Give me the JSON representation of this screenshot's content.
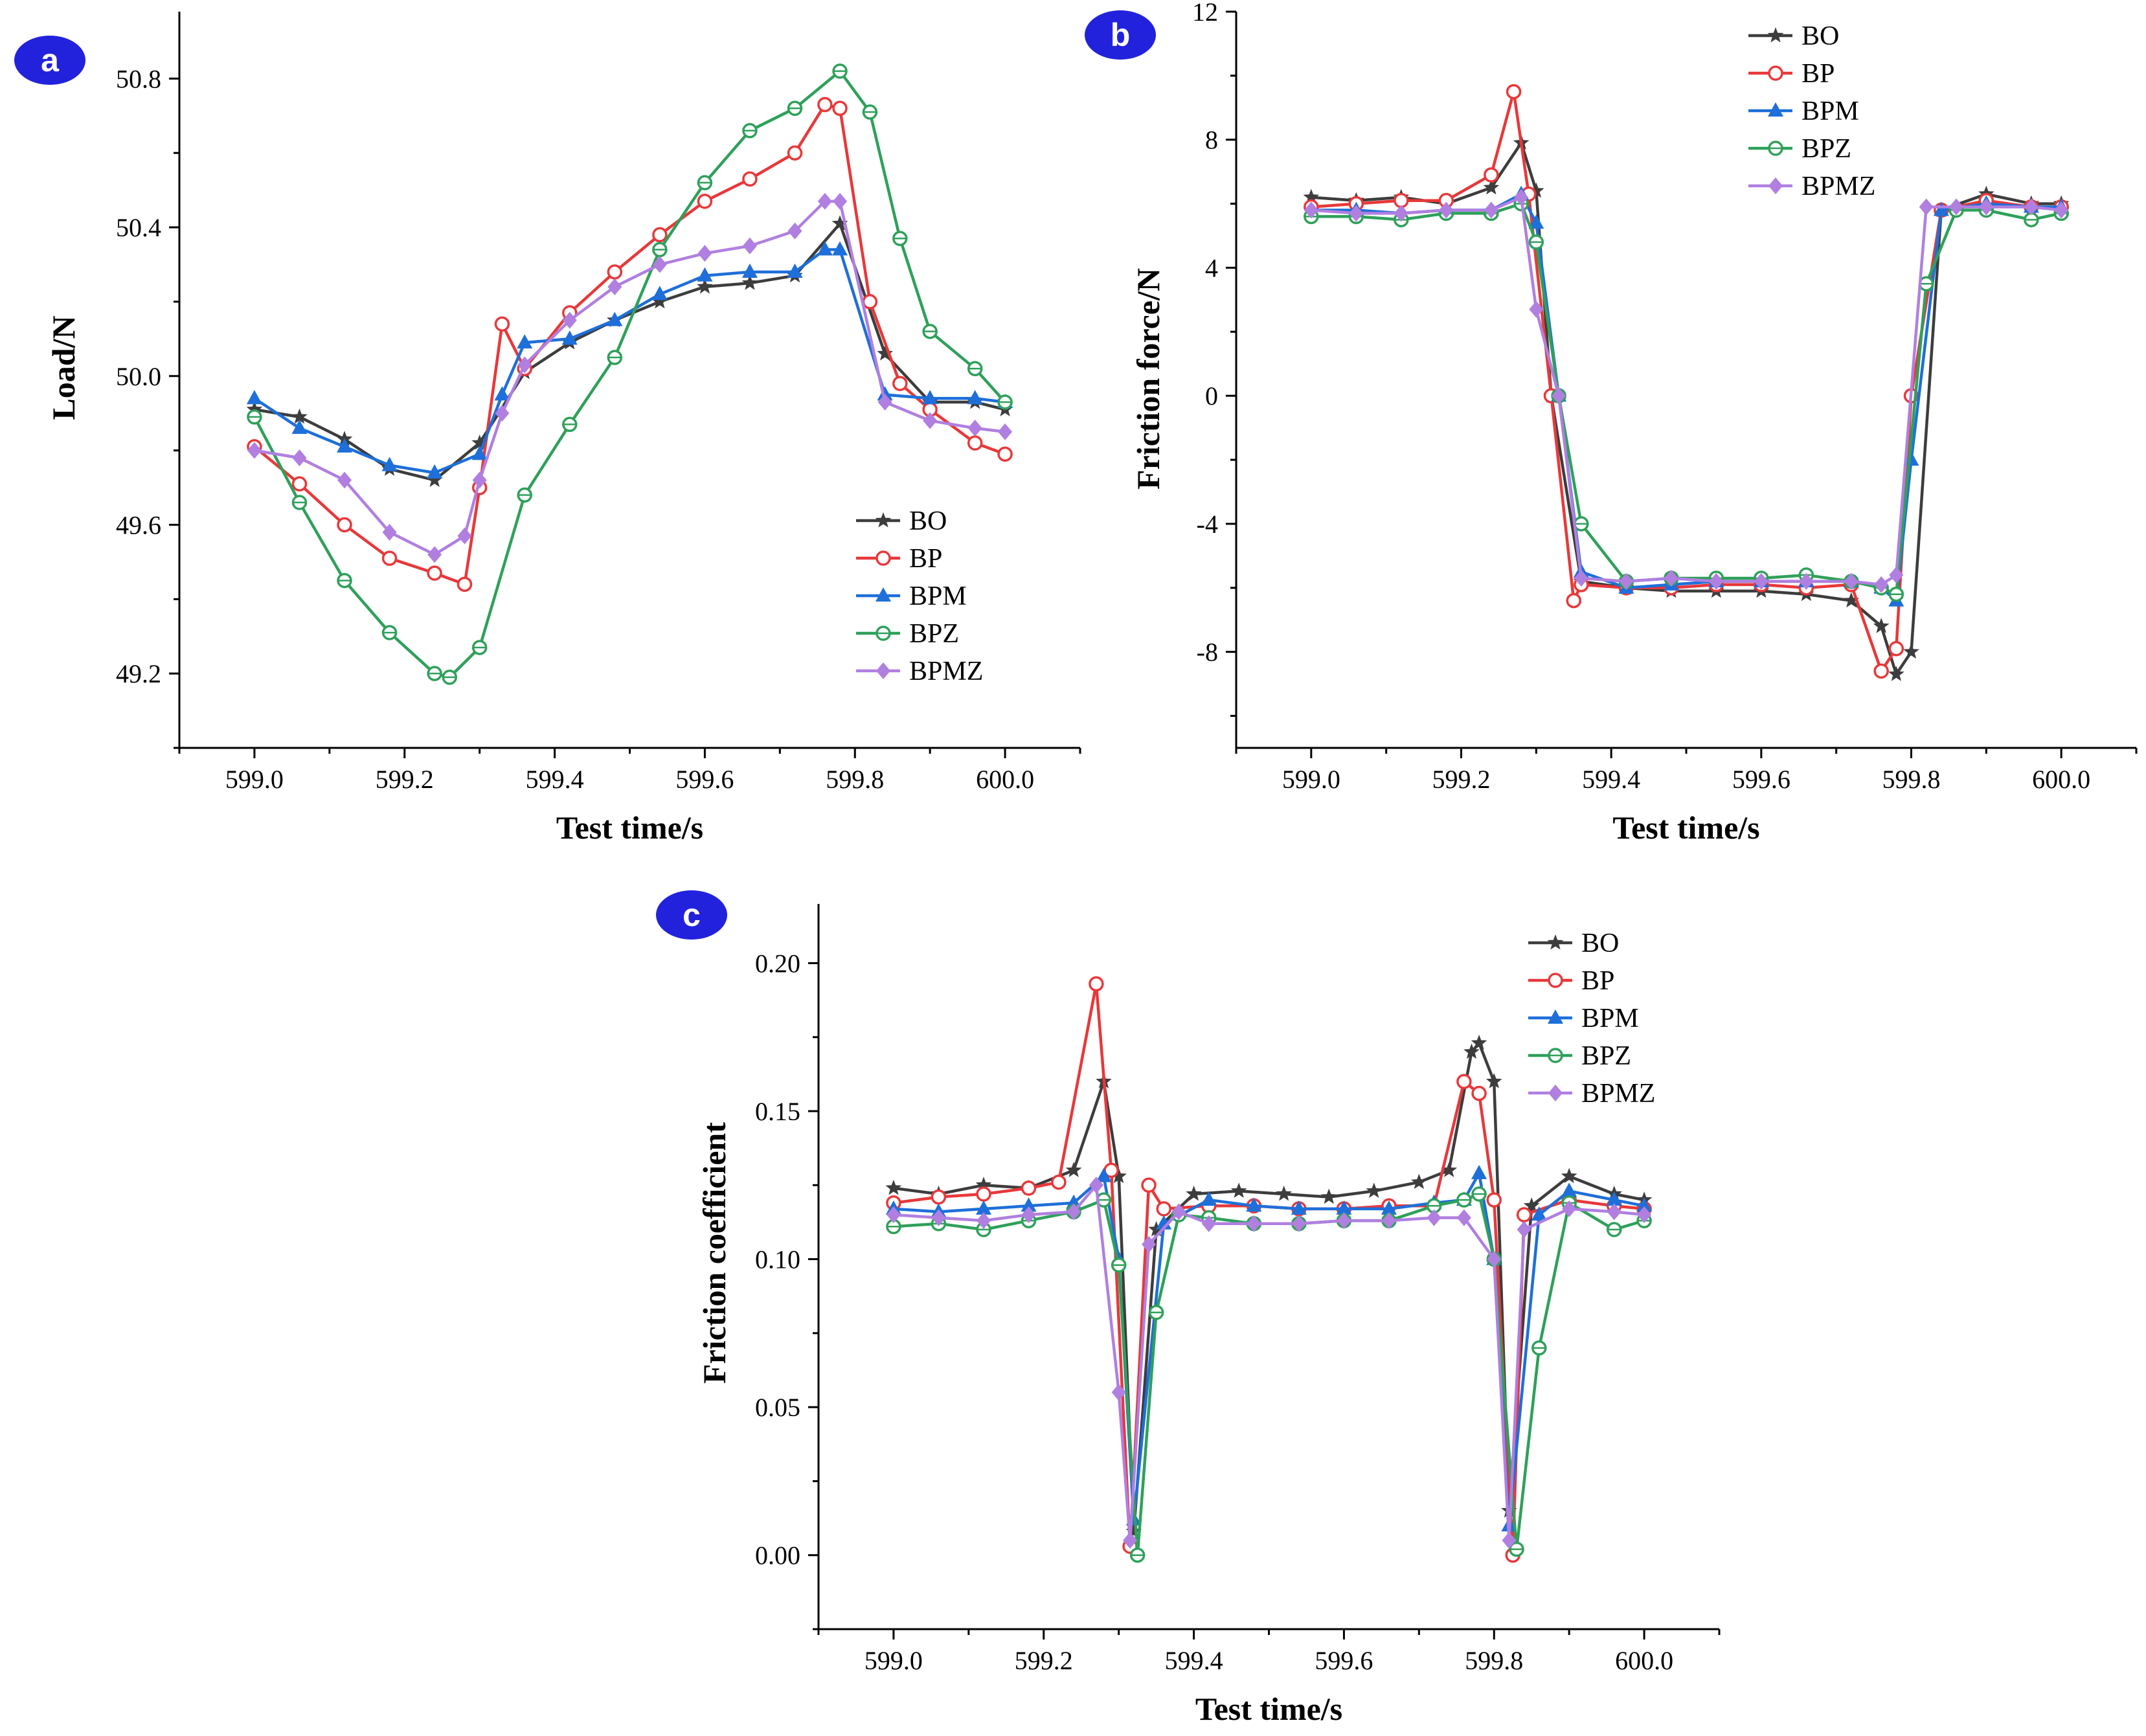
{
  "colors": {
    "BO": "#3d3d3d",
    "BP": "#e8383a",
    "BPM": "#1e6fd9",
    "BPZ": "#2fa05a",
    "BPMZ": "#b07fe0",
    "badge": "#2222dd"
  },
  "chart_data": [
    {
      "panel": "a",
      "type": "line",
      "xlabel": "Test time/s",
      "ylabel": "Load/N",
      "xlim": [
        598.9,
        600.1
      ],
      "ylim": [
        49.0,
        50.98
      ],
      "xticks": [
        599.0,
        599.2,
        599.4,
        599.6,
        599.8,
        600.0
      ],
      "xtick_labels": [
        "599.0",
        "599.2",
        "599.4",
        "599.6",
        "599.8",
        "600.0"
      ],
      "yticks": [
        49.2,
        49.6,
        50.0,
        50.4,
        50.8
      ],
      "ytick_labels": [
        "49.2",
        "49.6",
        "50.0",
        "50.4",
        "50.8"
      ],
      "legend_position": "bottom-right",
      "series": [
        {
          "name": "BO",
          "marker": "star",
          "x": [
            599.0,
            599.06,
            599.12,
            599.18,
            599.24,
            599.3,
            599.36,
            599.42,
            599.48,
            599.54,
            599.6,
            599.66,
            599.72,
            599.78,
            599.84,
            599.9,
            599.96,
            600.0
          ],
          "y": [
            49.91,
            49.89,
            49.83,
            49.75,
            49.72,
            49.82,
            50.01,
            50.09,
            50.15,
            50.2,
            50.24,
            50.25,
            50.27,
            50.41,
            50.06,
            49.93,
            49.93,
            49.91
          ]
        },
        {
          "name": "BP",
          "marker": "circle",
          "x": [
            599.0,
            599.06,
            599.12,
            599.18,
            599.24,
            599.28,
            599.3,
            599.33,
            599.36,
            599.42,
            599.48,
            599.54,
            599.6,
            599.66,
            599.72,
            599.76,
            599.78,
            599.82,
            599.86,
            599.9,
            599.96,
            600.0
          ],
          "y": [
            49.81,
            49.71,
            49.6,
            49.51,
            49.47,
            49.44,
            49.7,
            50.14,
            50.02,
            50.17,
            50.28,
            50.38,
            50.47,
            50.53,
            50.6,
            50.73,
            50.72,
            50.2,
            49.98,
            49.91,
            49.82,
            49.79
          ]
        },
        {
          "name": "BPM",
          "marker": "triangle",
          "x": [
            599.0,
            599.06,
            599.12,
            599.18,
            599.24,
            599.3,
            599.33,
            599.36,
            599.42,
            599.48,
            599.54,
            599.6,
            599.66,
            599.72,
            599.76,
            599.78,
            599.84,
            599.9,
            599.96,
            600.0
          ],
          "y": [
            49.94,
            49.86,
            49.81,
            49.76,
            49.74,
            49.79,
            49.95,
            50.09,
            50.1,
            50.15,
            50.22,
            50.27,
            50.28,
            50.28,
            50.34,
            50.34,
            49.95,
            49.94,
            49.94,
            49.93
          ]
        },
        {
          "name": "BPZ",
          "marker": "circle-open",
          "x": [
            599.0,
            599.06,
            599.12,
            599.18,
            599.24,
            599.26,
            599.3,
            599.36,
            599.42,
            599.48,
            599.54,
            599.6,
            599.66,
            599.72,
            599.78,
            599.82,
            599.86,
            599.9,
            599.96,
            600.0
          ],
          "y": [
            49.89,
            49.66,
            49.45,
            49.31,
            49.2,
            49.19,
            49.27,
            49.68,
            49.87,
            50.05,
            50.34,
            50.52,
            50.66,
            50.72,
            50.82,
            50.71,
            50.37,
            50.12,
            50.02,
            49.93
          ]
        },
        {
          "name": "BPMZ",
          "marker": "diamond",
          "x": [
            599.0,
            599.06,
            599.12,
            599.18,
            599.24,
            599.28,
            599.3,
            599.33,
            599.36,
            599.42,
            599.48,
            599.54,
            599.6,
            599.66,
            599.72,
            599.76,
            599.78,
            599.84,
            599.9,
            599.96,
            600.0
          ],
          "y": [
            49.8,
            49.78,
            49.72,
            49.58,
            49.52,
            49.57,
            49.72,
            49.9,
            50.03,
            50.15,
            50.24,
            50.3,
            50.33,
            50.35,
            50.39,
            50.47,
            50.47,
            49.93,
            49.88,
            49.86,
            49.85
          ]
        }
      ]
    },
    {
      "panel": "b",
      "type": "line",
      "xlabel": "Test time/s",
      "ylabel": "Friction force/N",
      "xlim": [
        598.9,
        600.1
      ],
      "ylim": [
        -11,
        12
      ],
      "xticks": [
        599.0,
        599.2,
        599.4,
        599.6,
        599.8,
        600.0
      ],
      "xtick_labels": [
        "599.0",
        "599.2",
        "599.4",
        "599.6",
        "599.8",
        "600.0"
      ],
      "yticks": [
        -8,
        -4,
        0,
        4,
        8,
        12
      ],
      "ytick_labels": [
        "-8",
        "-4",
        "0",
        "4",
        "8",
        "12"
      ],
      "legend_position": "top-right",
      "series": [
        {
          "name": "BO",
          "marker": "star",
          "x": [
            599.0,
            599.06,
            599.12,
            599.18,
            599.24,
            599.28,
            599.3,
            599.32,
            599.36,
            599.42,
            599.48,
            599.54,
            599.6,
            599.66,
            599.72,
            599.76,
            599.78,
            599.8,
            599.84,
            599.9,
            599.96,
            600.0
          ],
          "y": [
            6.2,
            6.1,
            6.2,
            6.0,
            6.5,
            7.9,
            6.4,
            0.0,
            -5.8,
            -6.0,
            -6.1,
            -6.1,
            -6.1,
            -6.2,
            -6.4,
            -7.2,
            -8.7,
            -8.0,
            5.8,
            6.3,
            6.0,
            6.0
          ]
        },
        {
          "name": "BP",
          "marker": "circle",
          "x": [
            599.0,
            599.06,
            599.12,
            599.18,
            599.24,
            599.27,
            599.29,
            599.32,
            599.35,
            599.36,
            599.42,
            599.48,
            599.54,
            599.6,
            599.66,
            599.72,
            599.76,
            599.78,
            599.8,
            599.84,
            599.9,
            599.96,
            600.0
          ],
          "y": [
            5.9,
            6.0,
            6.1,
            6.1,
            6.9,
            9.5,
            6.3,
            0.0,
            -6.4,
            -5.9,
            -6.0,
            -6.0,
            -5.9,
            -5.9,
            -6.0,
            -5.9,
            -8.6,
            -7.9,
            0.0,
            5.8,
            6.1,
            5.9,
            5.9
          ]
        },
        {
          "name": "BPM",
          "marker": "triangle",
          "x": [
            599.0,
            599.06,
            599.12,
            599.18,
            599.24,
            599.28,
            599.3,
            599.33,
            599.36,
            599.42,
            599.48,
            599.54,
            599.6,
            599.66,
            599.72,
            599.76,
            599.78,
            599.8,
            599.84,
            599.9,
            599.96,
            600.0
          ],
          "y": [
            5.8,
            5.8,
            5.7,
            5.8,
            5.8,
            6.3,
            5.4,
            0.0,
            -5.5,
            -6.0,
            -5.9,
            -5.8,
            -5.8,
            -5.8,
            -5.8,
            -6.0,
            -6.4,
            -2.0,
            5.8,
            6.0,
            5.9,
            5.9
          ]
        },
        {
          "name": "BPZ",
          "marker": "circle-open",
          "x": [
            599.0,
            599.06,
            599.12,
            599.18,
            599.24,
            599.28,
            599.3,
            599.33,
            599.36,
            599.42,
            599.48,
            599.54,
            599.6,
            599.66,
            599.72,
            599.76,
            599.78,
            599.82,
            599.86,
            599.9,
            599.96,
            600.0
          ],
          "y": [
            5.6,
            5.6,
            5.5,
            5.7,
            5.7,
            6.0,
            4.8,
            0.0,
            -4.0,
            -5.8,
            -5.7,
            -5.7,
            -5.7,
            -5.6,
            -5.8,
            -6.0,
            -6.2,
            3.5,
            5.8,
            5.8,
            5.5,
            5.7
          ]
        },
        {
          "name": "BPMZ",
          "marker": "diamond",
          "x": [
            599.0,
            599.06,
            599.12,
            599.18,
            599.24,
            599.28,
            599.3,
            599.33,
            599.36,
            599.42,
            599.48,
            599.54,
            599.6,
            599.66,
            599.72,
            599.76,
            599.78,
            599.82,
            599.86,
            599.9,
            599.96,
            600.0
          ],
          "y": [
            5.8,
            5.7,
            5.7,
            5.8,
            5.8,
            6.2,
            2.7,
            0.0,
            -5.7,
            -5.8,
            -5.7,
            -5.8,
            -5.8,
            -5.8,
            -5.8,
            -5.9,
            -5.6,
            5.9,
            5.9,
            5.9,
            5.9,
            5.8
          ]
        }
      ]
    },
    {
      "panel": "c",
      "type": "line",
      "xlabel": "Test time/s",
      "ylabel": "Friction coefficient",
      "xlim": [
        598.9,
        600.1
      ],
      "ylim": [
        -0.025,
        0.22
      ],
      "xticks": [
        599.0,
        599.2,
        599.4,
        599.6,
        599.8,
        600.0
      ],
      "xtick_labels": [
        "599.0",
        "599.2",
        "599.4",
        "599.6",
        "599.8",
        "600.0"
      ],
      "yticks": [
        0.0,
        0.05,
        0.1,
        0.15,
        0.2
      ],
      "ytick_labels": [
        "0.00",
        "0.05",
        "0.10",
        "0.15",
        "0.20"
      ],
      "legend_position": "top-right",
      "series": [
        {
          "name": "BO",
          "marker": "star",
          "x": [
            599.0,
            599.06,
            599.12,
            599.18,
            599.24,
            599.28,
            599.3,
            599.32,
            599.35,
            599.4,
            599.46,
            599.52,
            599.58,
            599.64,
            599.7,
            599.74,
            599.77,
            599.78,
            599.8,
            599.82,
            599.85,
            599.9,
            599.96,
            600.0
          ],
          "y": [
            0.124,
            0.122,
            0.125,
            0.124,
            0.13,
            0.16,
            0.128,
            0.008,
            0.11,
            0.122,
            0.123,
            0.122,
            0.121,
            0.123,
            0.126,
            0.13,
            0.17,
            0.173,
            0.16,
            0.015,
            0.118,
            0.128,
            0.122,
            0.12
          ]
        },
        {
          "name": "BP",
          "marker": "circle",
          "x": [
            599.0,
            599.06,
            599.12,
            599.18,
            599.22,
            599.27,
            599.29,
            599.315,
            599.34,
            599.36,
            599.42,
            599.48,
            599.54,
            599.6,
            599.66,
            599.72,
            599.76,
            599.78,
            599.8,
            599.825,
            599.84,
            599.9,
            599.96,
            600.0
          ],
          "y": [
            0.119,
            0.121,
            0.122,
            0.124,
            0.126,
            0.193,
            0.13,
            0.003,
            0.125,
            0.117,
            0.118,
            0.118,
            0.117,
            0.117,
            0.118,
            0.118,
            0.16,
            0.156,
            0.12,
            0.0,
            0.115,
            0.12,
            0.118,
            0.117
          ]
        },
        {
          "name": "BPM",
          "marker": "triangle",
          "x": [
            599.0,
            599.06,
            599.12,
            599.18,
            599.24,
            599.28,
            599.3,
            599.32,
            599.36,
            599.42,
            599.48,
            599.54,
            599.6,
            599.66,
            599.72,
            599.76,
            599.78,
            599.8,
            599.82,
            599.86,
            599.9,
            599.96,
            600.0
          ],
          "y": [
            0.117,
            0.116,
            0.117,
            0.118,
            0.119,
            0.128,
            0.1,
            0.012,
            0.112,
            0.12,
            0.118,
            0.117,
            0.117,
            0.117,
            0.119,
            0.12,
            0.129,
            0.1,
            0.01,
            0.115,
            0.123,
            0.12,
            0.118
          ]
        },
        {
          "name": "BPZ",
          "marker": "circle-open",
          "x": [
            599.0,
            599.06,
            599.12,
            599.18,
            599.24,
            599.28,
            599.3,
            599.325,
            599.35,
            599.38,
            599.42,
            599.48,
            599.54,
            599.6,
            599.66,
            599.72,
            599.76,
            599.78,
            599.8,
            599.83,
            599.86,
            599.9,
            599.96,
            600.0
          ],
          "y": [
            0.111,
            0.112,
            0.11,
            0.113,
            0.116,
            0.12,
            0.098,
            0.0,
            0.082,
            0.115,
            0.114,
            0.112,
            0.112,
            0.113,
            0.113,
            0.118,
            0.12,
            0.122,
            0.1,
            0.002,
            0.07,
            0.119,
            0.11,
            0.113
          ]
        },
        {
          "name": "BPMZ",
          "marker": "diamond",
          "x": [
            599.0,
            599.06,
            599.12,
            599.18,
            599.24,
            599.27,
            599.3,
            599.315,
            599.34,
            599.38,
            599.42,
            599.48,
            599.54,
            599.6,
            599.66,
            599.72,
            599.76,
            599.8,
            599.82,
            599.84,
            599.9,
            599.96,
            600.0
          ],
          "y": [
            0.115,
            0.114,
            0.113,
            0.115,
            0.116,
            0.125,
            0.055,
            0.005,
            0.105,
            0.116,
            0.112,
            0.112,
            0.112,
            0.113,
            0.113,
            0.114,
            0.114,
            0.1,
            0.005,
            0.11,
            0.117,
            0.116,
            0.115
          ]
        }
      ]
    }
  ]
}
